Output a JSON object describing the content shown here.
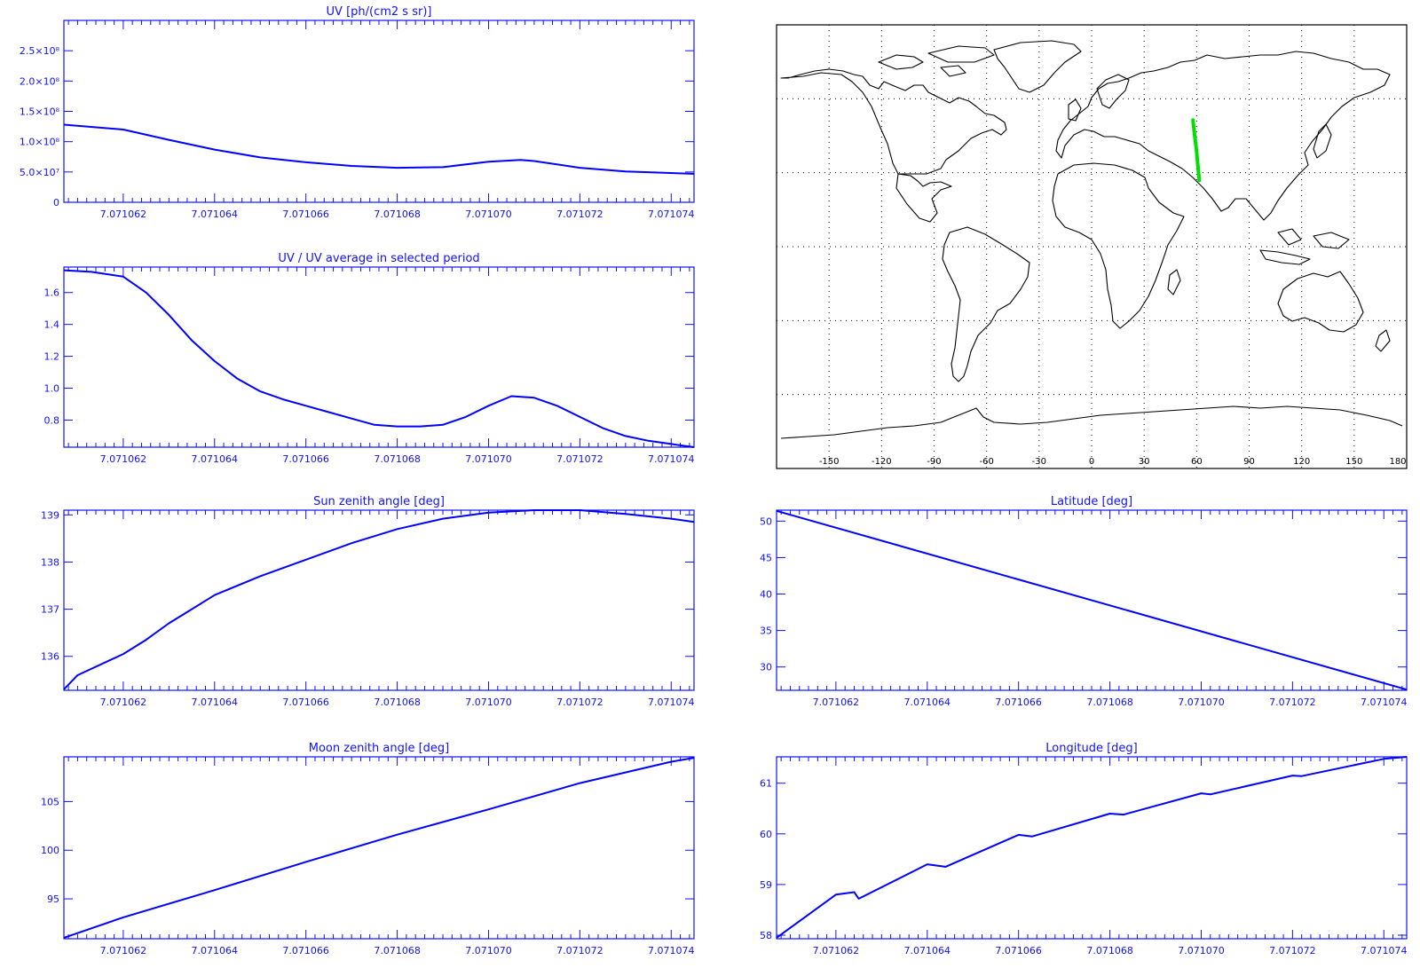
{
  "x_ticks": [
    "7.071062",
    "7.071064",
    "7.071066",
    "7.071068",
    "7.071070",
    "7.071072",
    "7.071074"
  ],
  "chart_data": [
    {
      "id": "uv",
      "type": "line",
      "title": "UV [ph/(cm2 s sr)]",
      "xlim": [
        7.0710607,
        7.0710745
      ],
      "ylim": [
        0,
        300000000
      ],
      "yticks": [
        0,
        50000000,
        100000000,
        150000000,
        200000000,
        250000000
      ],
      "ytick_labels": [
        "0",
        "5.0×10⁷",
        "1.0×10⁸",
        "1.5×10⁸",
        "2.0×10⁸",
        "2.5×10⁸"
      ],
      "x": [
        7.0710607,
        7.071062,
        7.071063,
        7.071064,
        7.071065,
        7.071066,
        7.071067,
        7.071068,
        7.071069,
        7.07107,
        7.0710707,
        7.071071,
        7.071072,
        7.071073,
        7.0710745
      ],
      "y": [
        128000000,
        120000000,
        103000000,
        87000000,
        74000000,
        66000000,
        60000000,
        57000000,
        58000000,
        67000000,
        70000000,
        68000000,
        57000000,
        51000000,
        47000000
      ]
    },
    {
      "id": "uv_ratio",
      "type": "line",
      "title": "UV / UV average in selected period",
      "xlim": [
        7.0710607,
        7.0710745
      ],
      "ylim": [
        0.63,
        1.76
      ],
      "yticks": [
        0.8,
        1.0,
        1.2,
        1.4,
        1.6
      ],
      "ytick_labels": [
        "0.8",
        "1.0",
        "1.2",
        "1.4",
        "1.6"
      ],
      "x": [
        7.0710607,
        7.0710613,
        7.071062,
        7.0710625,
        7.071063,
        7.0710635,
        7.071064,
        7.0710645,
        7.071065,
        7.0710655,
        7.071066,
        7.0710665,
        7.071067,
        7.0710675,
        7.071068,
        7.0710685,
        7.071069,
        7.0710695,
        7.07107,
        7.0710705,
        7.071071,
        7.0710715,
        7.071072,
        7.0710725,
        7.071073,
        7.0710735,
        7.071074,
        7.0710745
      ],
      "y": [
        1.74,
        1.73,
        1.7,
        1.6,
        1.46,
        1.3,
        1.17,
        1.06,
        0.98,
        0.93,
        0.89,
        0.85,
        0.81,
        0.77,
        0.76,
        0.76,
        0.77,
        0.82,
        0.89,
        0.95,
        0.94,
        0.89,
        0.82,
        0.75,
        0.7,
        0.67,
        0.65,
        0.63
      ]
    },
    {
      "id": "sun_zenith",
      "type": "line",
      "title": "Sun zenith angle [deg]",
      "xlim": [
        7.0710607,
        7.0710745
      ],
      "ylim": [
        135.28,
        139.1
      ],
      "yticks": [
        136,
        137,
        138,
        139
      ],
      "ytick_labels": [
        "136",
        "137",
        "138",
        "139"
      ],
      "x": [
        7.0710607,
        7.071061,
        7.071062,
        7.0710625,
        7.071063,
        7.0710635,
        7.071064,
        7.071065,
        7.071066,
        7.071067,
        7.071068,
        7.071069,
        7.07107,
        7.071071,
        7.071072,
        7.071073,
        7.071074,
        7.0710745
      ],
      "y": [
        135.3,
        135.6,
        136.05,
        136.35,
        136.7,
        137.0,
        137.3,
        137.7,
        138.05,
        138.4,
        138.7,
        138.92,
        139.05,
        139.1,
        139.1,
        139.02,
        138.92,
        138.85
      ]
    },
    {
      "id": "latitude",
      "type": "line",
      "title": "Latitude [deg]",
      "xlim": [
        7.0710607,
        7.0710745
      ],
      "ylim": [
        26.8,
        51.5
      ],
      "yticks": [
        30,
        35,
        40,
        45,
        50
      ],
      "ytick_labels": [
        "30",
        "35",
        "40",
        "45",
        "50"
      ],
      "x": [
        7.0710607,
        7.0710745
      ],
      "y": [
        51.4,
        26.9
      ]
    },
    {
      "id": "moon_zenith",
      "type": "line",
      "title": "Moon zenith angle [deg]",
      "xlim": [
        7.0710607,
        7.0710745
      ],
      "ylim": [
        90.9,
        109.6
      ],
      "yticks": [
        95,
        100,
        105
      ],
      "ytick_labels": [
        "95",
        "100",
        "105"
      ],
      "x": [
        7.0710607,
        7.071062,
        7.071064,
        7.071066,
        7.071068,
        7.07107,
        7.071072,
        7.071074,
        7.0710745
      ],
      "y": [
        91.0,
        93.1,
        95.9,
        98.8,
        101.6,
        104.2,
        106.9,
        109.1,
        109.5
      ]
    },
    {
      "id": "longitude",
      "type": "line",
      "title": "Longitude [deg]",
      "xlim": [
        7.0710607,
        7.0710745
      ],
      "ylim": [
        57.93,
        61.52
      ],
      "yticks": [
        58,
        59,
        60,
        61
      ],
      "ytick_labels": [
        "58",
        "59",
        "60",
        "61"
      ],
      "x": [
        7.0710607,
        7.071062,
        7.0710624,
        7.0710625,
        7.071064,
        7.0710644,
        7.071066,
        7.0710663,
        7.071068,
        7.0710683,
        7.07107,
        7.0710702,
        7.071072,
        7.0710722,
        7.071074,
        7.0710745
      ],
      "y": [
        57.95,
        58.8,
        58.85,
        58.72,
        59.4,
        59.35,
        59.98,
        59.95,
        60.4,
        60.38,
        60.8,
        60.78,
        61.15,
        61.14,
        61.48,
        61.52
      ]
    }
  ],
  "map": {
    "lon_ticks": [
      "-150",
      "-120",
      "-90",
      "-60",
      "-30",
      "0",
      "30",
      "60",
      "90",
      "120",
      "150",
      "180"
    ],
    "xlim": [
      -180,
      180
    ],
    "ylim": [
      -90,
      90
    ],
    "grid_lon": [
      -150,
      -120,
      -90,
      -60,
      -30,
      0,
      30,
      60,
      90,
      120,
      150
    ],
    "grid_lat": [
      -60,
      -30,
      0,
      30,
      60
    ],
    "track": {
      "color": "#00e000",
      "lon": [
        57.9,
        58.8,
        59.9,
        60.7,
        61.5
      ],
      "lat": [
        51.4,
        45.4,
        39.2,
        33.0,
        26.9
      ]
    }
  }
}
